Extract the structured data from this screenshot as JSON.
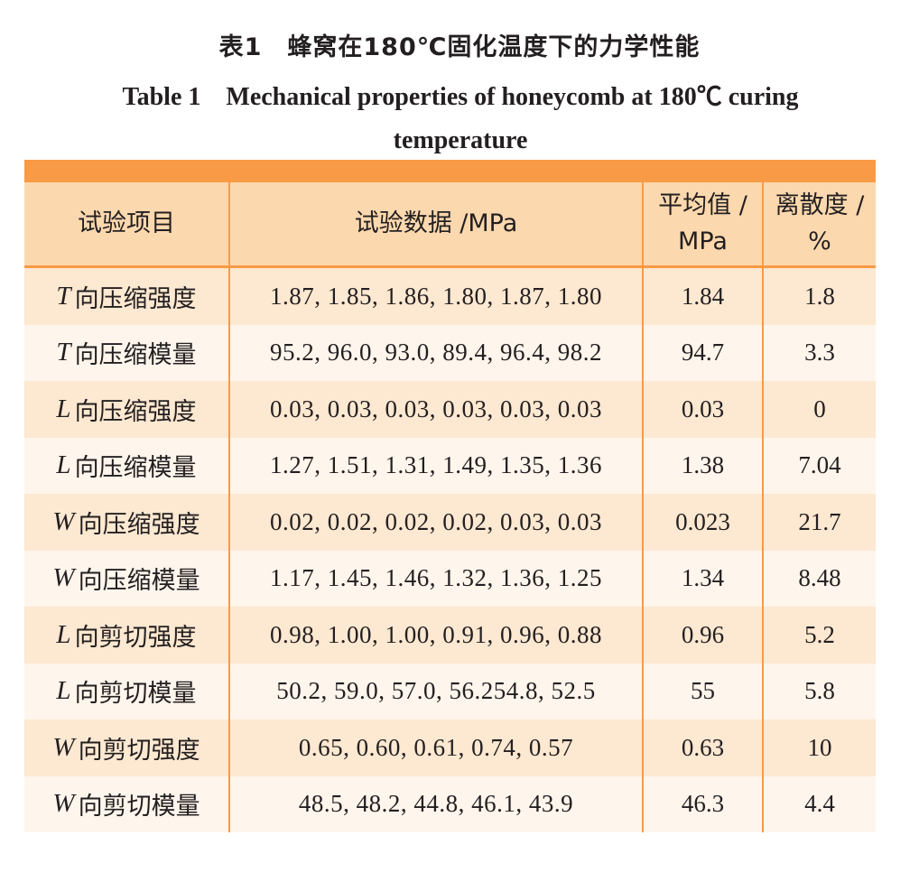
{
  "caption": {
    "cn": "表1　蜂窝在180℃固化温度下的力学性能",
    "en": "Table 1　Mechanical properties of honeycomb at 180℃ curing temperature"
  },
  "table": {
    "headers": [
      "试验项目",
      "试验数据 /MPa",
      "平均值 / MPa",
      "离散度 / %"
    ],
    "rows": [
      {
        "dir": "T",
        "item": "向压缩强度",
        "data": "1.87,1.85,1.86,1.80,1.87,1.80",
        "avg": "1.84",
        "cv": "1.8"
      },
      {
        "dir": "T",
        "item": "向压缩模量",
        "data": "95.2,96.0,93.0,89.4,96.4,98.2",
        "avg": "94.7",
        "cv": "3.3"
      },
      {
        "dir": "L",
        "item": "向压缩强度",
        "data": "0.03,0.03,0.03,0.03,0.03,0.03",
        "avg": "0.03",
        "cv": "0"
      },
      {
        "dir": "L",
        "item": "向压缩模量",
        "data": "1.27,1.51,1.31,1.49,1.35,1.36",
        "avg": "1.38",
        "cv": "7.04"
      },
      {
        "dir": "W",
        "item": "向压缩强度",
        "data": "0.02,0.02,0.02,0.02,0.03,0.03",
        "avg": "0.023",
        "cv": "21.7"
      },
      {
        "dir": "W",
        "item": "向压缩模量",
        "data": "1.17,1.45,1.46,1.32,1.36,1.25",
        "avg": "1.34",
        "cv": "8.48"
      },
      {
        "dir": "L",
        "item": "向剪切强度",
        "data": "0.98,1.00,1.00,0.91,0.96,0.88",
        "avg": "0.96",
        "cv": "5.2"
      },
      {
        "dir": "L",
        "item": "向剪切模量",
        "data": "50.2,59.0,57.0,56.254.8,52.5",
        "avg": "55",
        "cv": "5.8"
      },
      {
        "dir": "W",
        "item": "向剪切强度",
        "data": "0.65,0.60,0.61,0.74,0.57",
        "avg": "0.63",
        "cv": "10"
      },
      {
        "dir": "W",
        "item": "向剪切模量",
        "data": "48.5,48.2,44.8,46.1,43.9",
        "avg": "46.3",
        "cv": "4.4"
      }
    ]
  },
  "colors": {
    "accent": "#f89a46",
    "header_bg": "#fcd8ae",
    "row_odd": "#fde8d1",
    "row_even": "#fef5ec"
  }
}
